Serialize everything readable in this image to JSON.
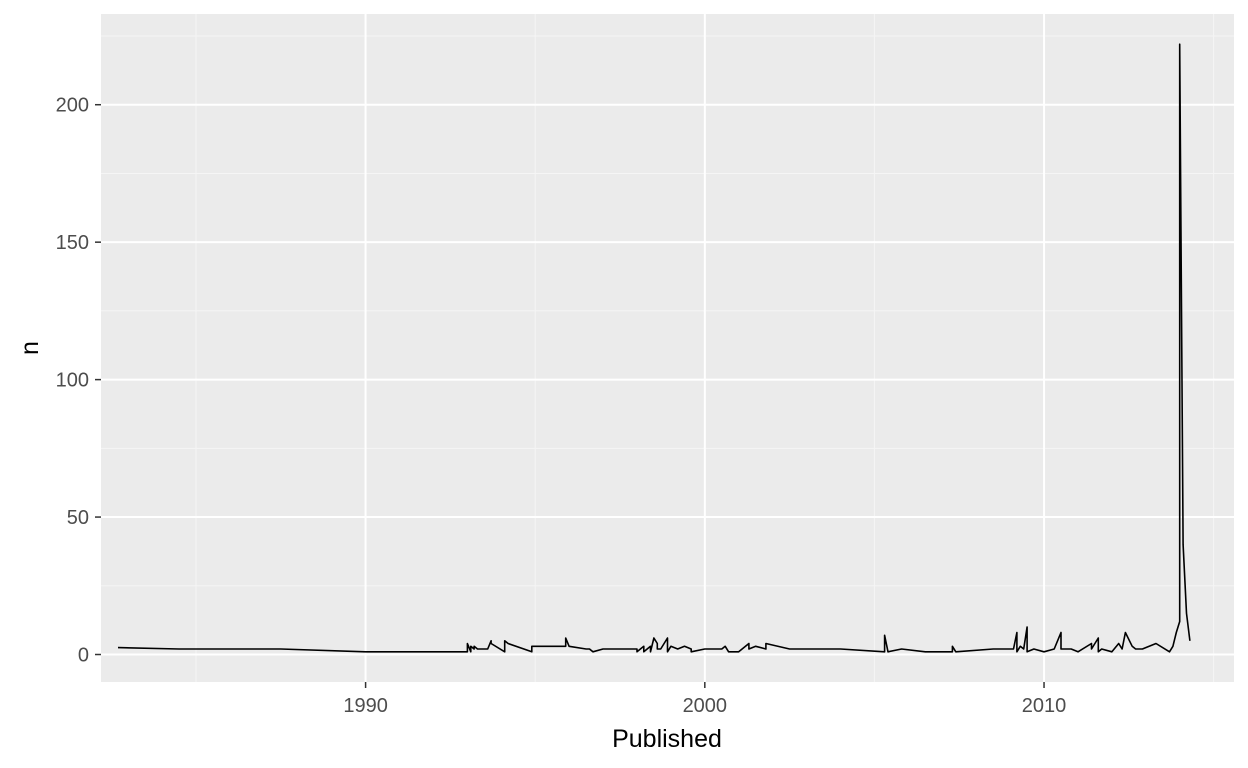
{
  "colors": {
    "panel_background": "#ebebeb",
    "grid_major": "#ffffff",
    "grid_minor": "#f5f5f5",
    "line": "#000000",
    "tick_label": "#4d4d4d"
  },
  "chart_data": {
    "type": "line",
    "title": "",
    "xlabel": "Published",
    "ylabel": "n",
    "xlim": [
      1982.2,
      2015.6
    ],
    "ylim": [
      -10,
      233
    ],
    "x_ticks": [
      1990,
      2000,
      2010
    ],
    "x_tick_labels": [
      "1990",
      "2000",
      "2010"
    ],
    "y_ticks": [
      0,
      50,
      100,
      150,
      200
    ],
    "y_tick_labels": [
      "0",
      "50",
      "100",
      "150",
      "200"
    ],
    "x_minor_ticks": [
      1985,
      1995,
      2005,
      2015
    ],
    "y_minor_ticks": [
      25,
      75,
      125,
      175,
      225
    ],
    "grid": true,
    "legend": "none",
    "series": [
      {
        "x": [
          1982.7,
          1984.5,
          1987.5,
          1990.0,
          1993.0,
          1993.0,
          1993.1,
          1993.1,
          1993.2,
          1993.2,
          1993.3,
          1993.6,
          1993.7,
          1993.7,
          1994.1,
          1994.1,
          1994.2,
          1994.9,
          1994.9,
          1995.5,
          1995.9,
          1995.9,
          1996.0,
          1996.5,
          1996.6,
          1996.7,
          1997.0,
          1997.6,
          1998.0,
          1998.0,
          1998.2,
          1998.2,
          1998.4,
          1998.4,
          1998.5,
          1998.6,
          1998.6,
          1998.7,
          1998.9,
          1998.9,
          1999.0,
          1999.2,
          1999.4,
          1999.6,
          1999.6,
          2000.0,
          2000.5,
          2000.6,
          2000.7,
          2000.9,
          2001.0,
          2001.3,
          2001.3,
          2001.5,
          2001.8,
          2001.8,
          2002.5,
          2003.0,
          2003.5,
          2004.0,
          2005.3,
          2005.3,
          2005.4,
          2005.8,
          2006.5,
          2007.3,
          2007.3,
          2007.4,
          2008.5,
          2009.1,
          2009.2,
          2009.2,
          2009.3,
          2009.4,
          2009.5,
          2009.5,
          2009.7,
          2010.0,
          2010.3,
          2010.5,
          2010.5,
          2010.8,
          2011.0,
          2011.4,
          2011.4,
          2011.6,
          2011.6,
          2011.7,
          2012.0,
          2012.2,
          2012.3,
          2012.4,
          2012.6,
          2012.7,
          2012.9,
          2013.3,
          2013.7,
          2013.8,
          2013.9,
          2014.0,
          2014.0,
          2014.1,
          2014.2,
          2014.3
        ],
        "y": [
          2.5,
          2,
          2,
          1,
          1,
          4,
          1,
          3,
          2,
          3,
          2,
          2,
          5,
          4,
          1,
          5,
          4,
          1,
          3,
          3,
          3,
          6,
          3,
          2,
          2,
          1,
          2,
          2,
          2,
          1,
          3,
          1,
          3,
          1,
          6,
          4,
          2,
          2,
          6,
          1,
          3,
          2,
          3,
          2,
          1,
          2,
          2,
          3,
          1,
          1,
          1,
          4,
          2,
          3,
          2,
          4,
          2,
          2,
          2,
          2,
          1,
          7,
          1,
          2,
          1,
          1,
          3,
          1,
          2,
          2,
          8,
          1,
          3,
          2,
          10,
          1,
          2,
          1,
          2,
          8,
          2,
          2,
          1,
          4,
          2,
          6,
          1,
          2,
          1,
          4,
          2,
          8,
          3,
          2,
          2,
          4,
          1,
          3,
          8,
          12,
          222,
          40,
          15,
          5
        ]
      }
    ]
  }
}
